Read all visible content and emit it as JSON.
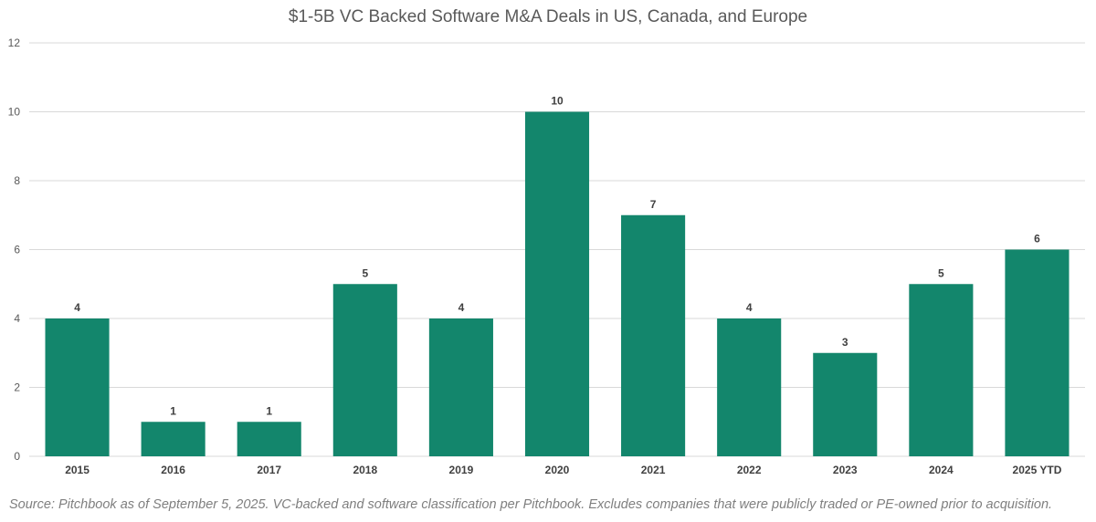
{
  "chart_data": {
    "type": "bar",
    "title": "$1-5B VC Backed Software M&A Deals in US, Canada, and Europe",
    "categories": [
      "2015",
      "2016",
      "2017",
      "2018",
      "2019",
      "2020",
      "2021",
      "2022",
      "2023",
      "2024",
      "2025 YTD"
    ],
    "values": [
      4,
      1,
      1,
      5,
      4,
      10,
      7,
      4,
      3,
      5,
      6
    ],
    "data_labels": [
      "4",
      "1",
      "1",
      "5",
      "4",
      "10",
      "7",
      "4",
      "3",
      "5",
      "6"
    ],
    "ylim": [
      0,
      12
    ],
    "yticks": [
      0,
      2,
      4,
      6,
      8,
      10,
      12
    ],
    "grid": true,
    "bar_color": "#13866C",
    "gridline_color": "#d9d9d9"
  },
  "footer": {
    "source": "Source: Pitchbook as of September 5, 2025. VC-backed and software classification per Pitchbook. Excludes companies that were publicly traded or PE-owned prior to acquisition."
  }
}
